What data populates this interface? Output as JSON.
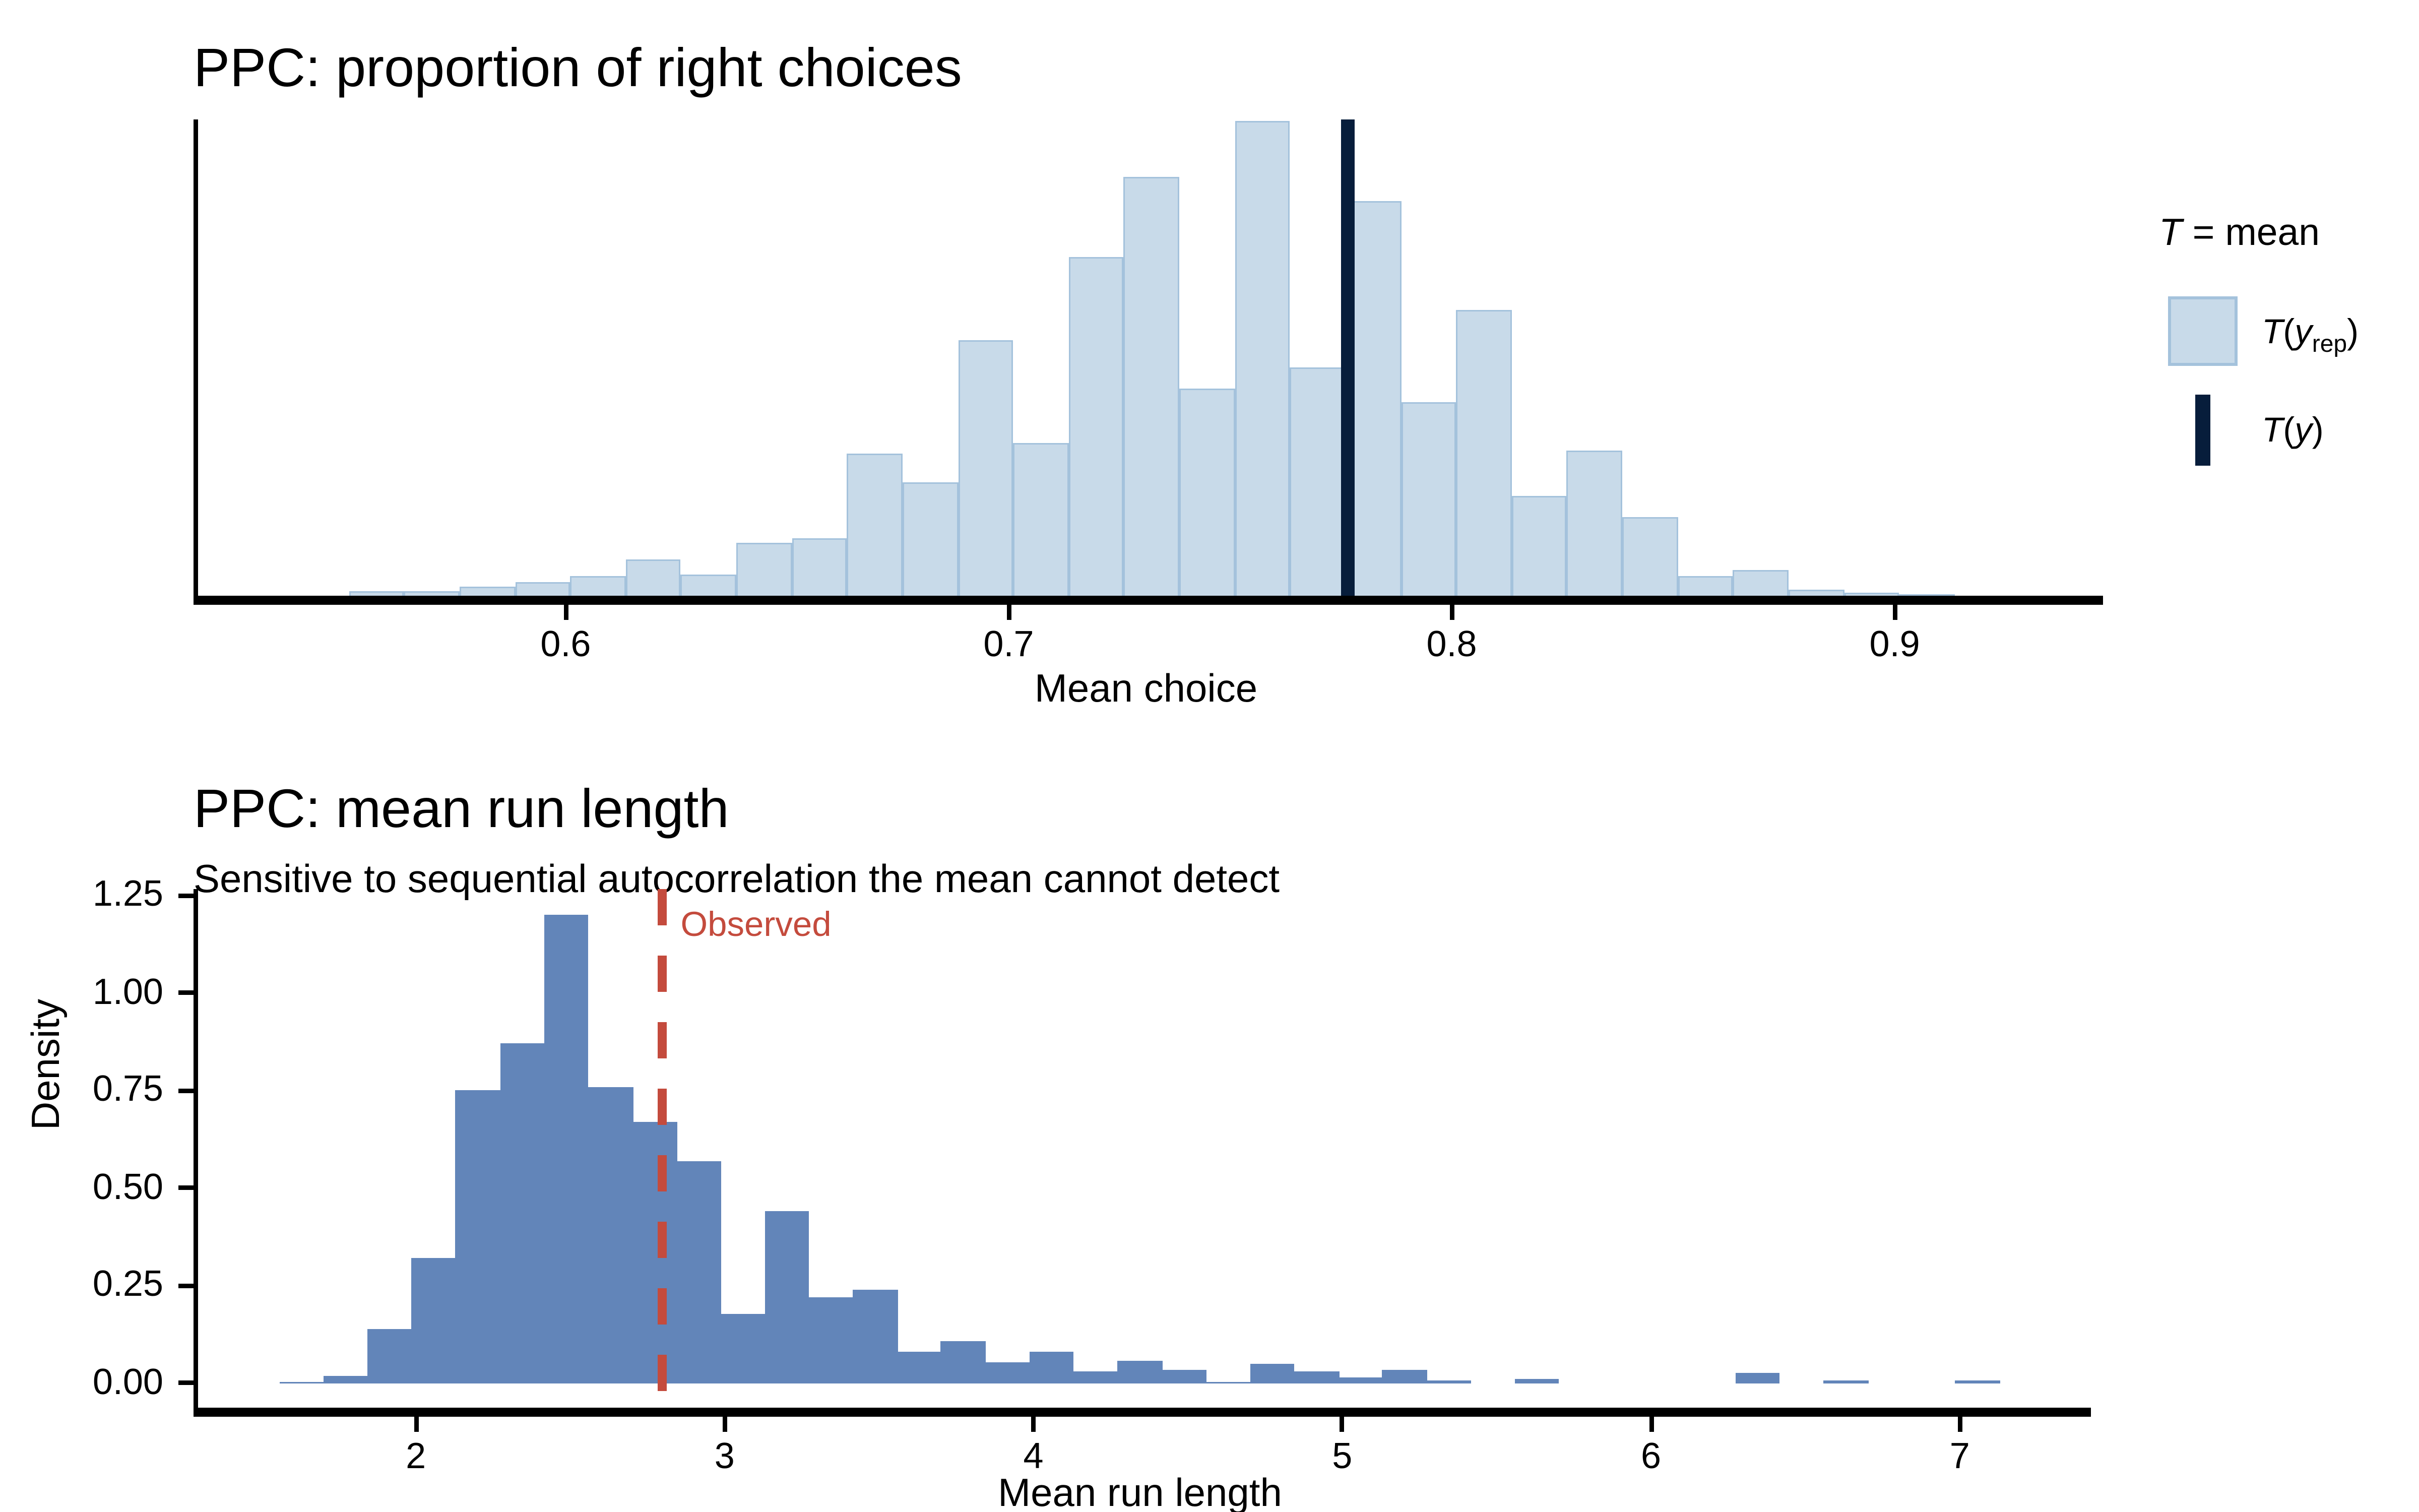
{
  "top_chart": {
    "title": "PPC: proportion of right choices",
    "x_axis_label": "Mean choice",
    "x_tick_labels": [
      "0.6",
      "0.7",
      "0.8",
      "0.9"
    ],
    "legend": {
      "title_t": "T",
      "title_rest": " = mean",
      "rep_pre": "T",
      "rep_open": "(",
      "rep_y": "y",
      "rep_sub": "rep",
      "rep_close": ")",
      "obs_pre": "T",
      "obs_open": "(",
      "obs_y": "y",
      "obs_close": ")"
    },
    "colors": {
      "bar_fill": "#c8dae9",
      "bar_border": "#a4c2dc",
      "observed_line": "#071d3b"
    }
  },
  "bottom_chart": {
    "title": "PPC: mean run length",
    "subtitle": "Sensitive to sequential autocorrelation the mean cannot detect",
    "x_axis_label": "Mean run length",
    "y_axis_label": "Density",
    "x_tick_labels": [
      "2",
      "3",
      "4",
      "5",
      "6",
      "7"
    ],
    "y_tick_labels": [
      "0.00",
      "0.25",
      "0.50",
      "0.75",
      "1.00",
      "1.25"
    ],
    "observed_label": "Observed",
    "colors": {
      "bar_fill": "#6285b9",
      "observed": "#c44b3d"
    }
  },
  "chart_data": [
    {
      "type": "bar",
      "variant": "histogram",
      "title": "PPC: proportion of right choices",
      "xlabel": "Mean choice",
      "ylabel": "",
      "legend_entries": [
        "T(y_rep)",
        "T(y)"
      ],
      "legend_title": "T = mean",
      "legend_position": "right",
      "grid": false,
      "x_domain": [
        0.516,
        0.946
      ],
      "x_ticks": [
        0.6,
        0.7,
        0.8,
        0.9
      ],
      "bin_width": 0.0125,
      "bin_left": [
        0.55,
        0.5625,
        0.575,
        0.5875,
        0.6,
        0.6125,
        0.625,
        0.6375,
        0.65,
        0.6625,
        0.675,
        0.6875,
        0.7,
        0.7125,
        0.725,
        0.7375,
        0.75,
        0.7625,
        0.775,
        0.7875,
        0.8,
        0.8125,
        0.825,
        0.8375,
        0.85,
        0.8625,
        0.875,
        0.8875,
        0.9
      ],
      "rel_heights": [
        0.01,
        0.01,
        0.02,
        0.028,
        0.042,
        0.075,
        0.046,
        0.112,
        0.12,
        0.3,
        0.24,
        0.537,
        0.321,
        0.712,
        0.881,
        0.437,
        1.0,
        0.482,
        0.83,
        0.407,
        0.602,
        0.209,
        0.307,
        0.165,
        0.041,
        0.053,
        0.013,
        0.006,
        0.003
      ],
      "observed_stat_value": 0.7755
    },
    {
      "type": "bar",
      "variant": "histogram",
      "title": "PPC: mean run length",
      "subtitle": "Sensitive to sequential autocorrelation the mean cannot detect",
      "xlabel": "Mean run length",
      "ylabel": "Density",
      "annotation": "Observed",
      "grid": false,
      "x_domain": [
        1.28,
        7.41
      ],
      "y_domain": [
        -0.062,
        1.267
      ],
      "x_ticks": [
        2,
        3,
        4,
        5,
        6,
        7
      ],
      "y_ticks": [
        0,
        0.25,
        0.5,
        0.75,
        1.0,
        1.25
      ],
      "ylim": [
        0,
        1.25
      ],
      "bin_width": 0.1429,
      "bin_left": [
        1.543,
        1.686,
        1.829,
        1.971,
        2.114,
        2.257,
        2.4,
        2.543,
        2.686,
        2.829,
        2.971,
        3.114,
        3.257,
        3.4,
        3.543,
        3.686,
        3.829,
        3.971,
        4.114,
        4.257,
        4.4,
        4.543,
        4.686,
        4.829,
        4.971,
        5.114,
        5.257,
        5.4,
        5.543,
        5.686,
        5.829,
        5.971,
        6.114,
        6.257,
        6.4,
        6.543,
        6.686,
        6.829,
        6.971
      ],
      "densities": [
        0.005,
        0.02,
        0.14,
        0.32,
        0.75,
        0.87,
        1.2,
        0.76,
        0.67,
        0.57,
        0.18,
        0.44,
        0.22,
        0.24,
        0.08,
        0.11,
        0.055,
        0.08,
        0.03,
        0.06,
        0.035,
        0.005,
        0.05,
        0.03,
        0.015,
        0.033,
        0.006,
        0,
        0.01,
        0,
        0,
        0,
        0,
        0.027,
        0,
        0.007,
        0,
        0,
        0.007
      ],
      "observed_line_value": 2.784
    }
  ]
}
